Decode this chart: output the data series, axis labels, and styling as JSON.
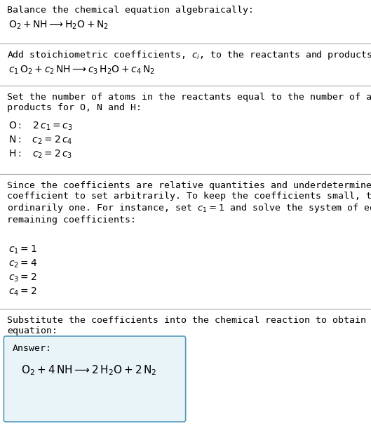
{
  "bg_color": "#ffffff",
  "text_color": "#000000",
  "line_color": "#aaaaaa",
  "answer_box_color": "#e8f4f8",
  "answer_box_edge": "#5599bb",
  "title": "Balance the chemical equation algebraically:",
  "eq1": "$\\mathrm{O_2 + NH \\longrightarrow H_2O + N_2}$",
  "section1_title": "Add stoichiometric coefficients, $c_i$, to the reactants and products:",
  "eq2": "$c_1\\,\\mathrm{O_2} + c_2\\,\\mathrm{NH} \\longrightarrow c_3\\,\\mathrm{H_2O} + c_4\\,\\mathrm{N_2}$",
  "section2_title": "Set the number of atoms in the reactants equal to the number of atoms in the\nproducts for O, N and H:",
  "eq_O": "$\\mathrm{O:}\\quad 2\\,c_1 = c_3$",
  "eq_N": "$\\mathrm{N:}\\quad c_2 = 2\\,c_4$",
  "eq_H": "$\\mathrm{H:}\\quad c_2 = 2\\,c_3$",
  "section3_text": "Since the coefficients are relative quantities and underdetermined, choose a\ncoefficient to set arbitrarily. To keep the coefficients small, the arbitrary value is\nordinarily one. For instance, set $c_1 = 1$ and solve the system of equations for the\nremaining coefficients:",
  "coeff1": "$c_1 = 1$",
  "coeff2": "$c_2 = 4$",
  "coeff3": "$c_3 = 2$",
  "coeff4": "$c_4 = 2$",
  "section4_title": "Substitute the coefficients into the chemical reaction to obtain the balanced\nequation:",
  "answer_label": "Answer:",
  "answer_eq": "$\\mathrm{O_2 + 4\\,NH \\longrightarrow 2\\,H_2O + 2\\,N_2}$",
  "figsize": [
    5.29,
    6.07
  ],
  "dpi": 100
}
